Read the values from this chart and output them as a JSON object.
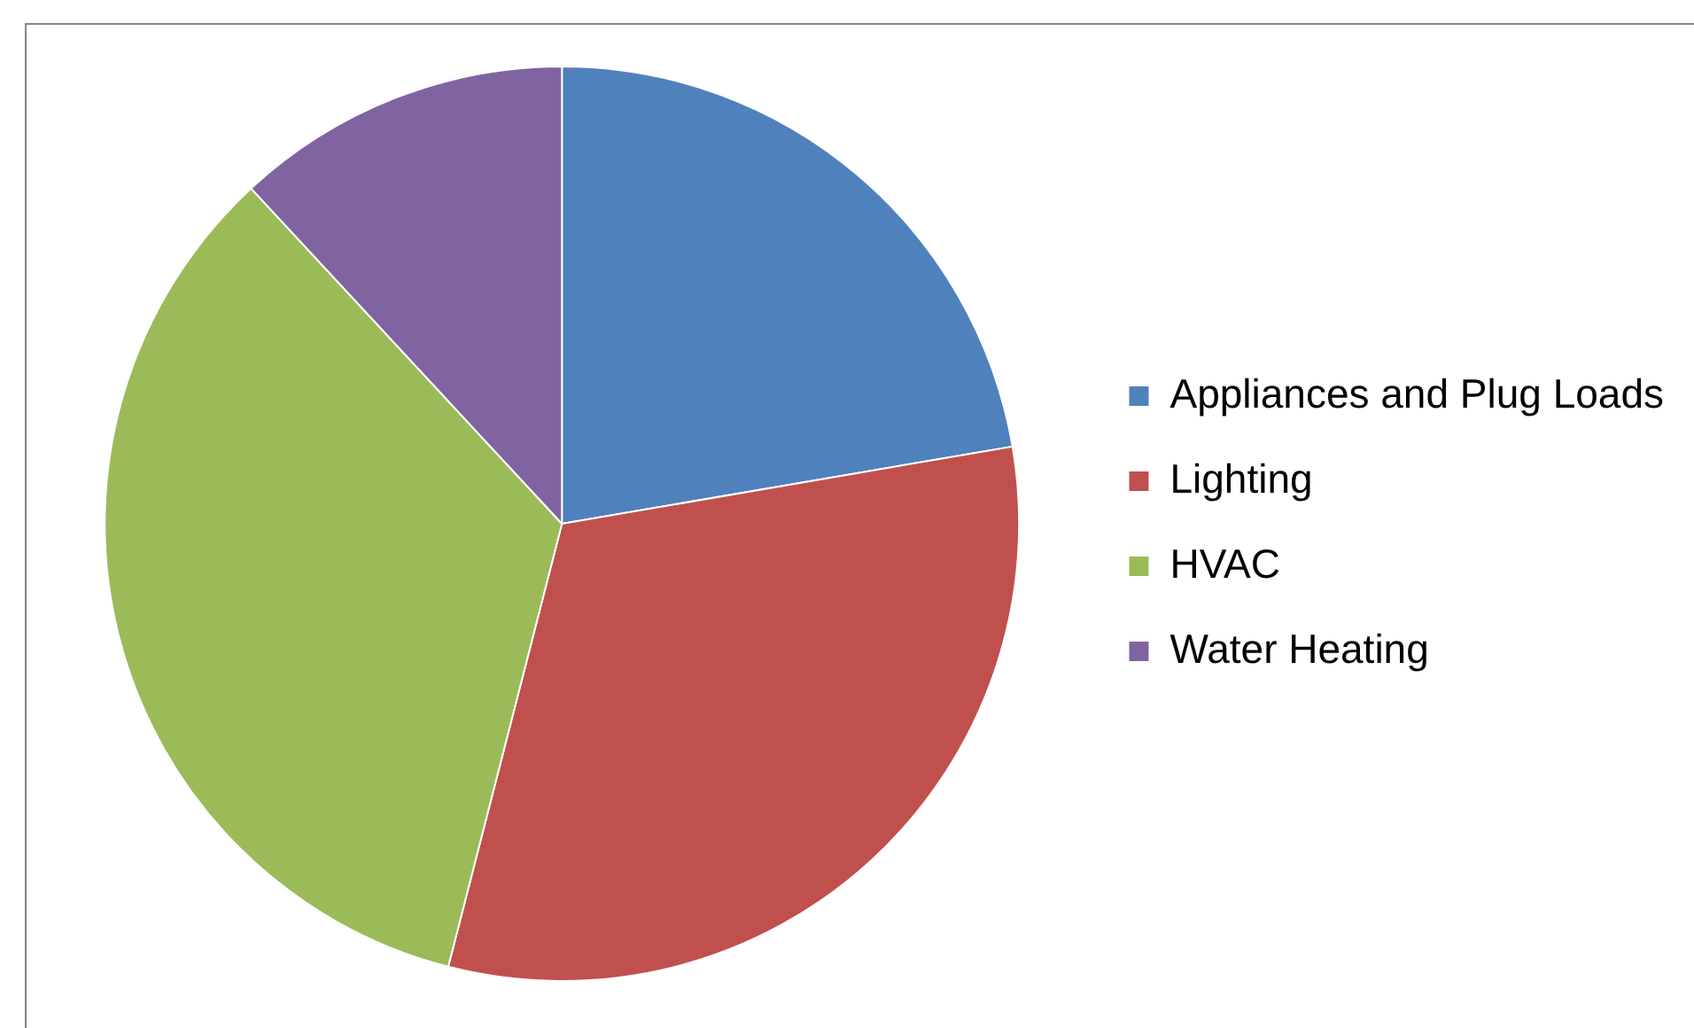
{
  "chart_data": {
    "type": "pie",
    "categories": [
      "Appliances and Plug Loads",
      "Lighting",
      "HVAC",
      "Water Heating"
    ],
    "values": [
      22.3,
      31.7,
      34.1,
      11.9
    ],
    "colors": [
      "#4f81bd",
      "#c0504d",
      "#9bbb59",
      "#8064a2"
    ],
    "legend": "right"
  }
}
